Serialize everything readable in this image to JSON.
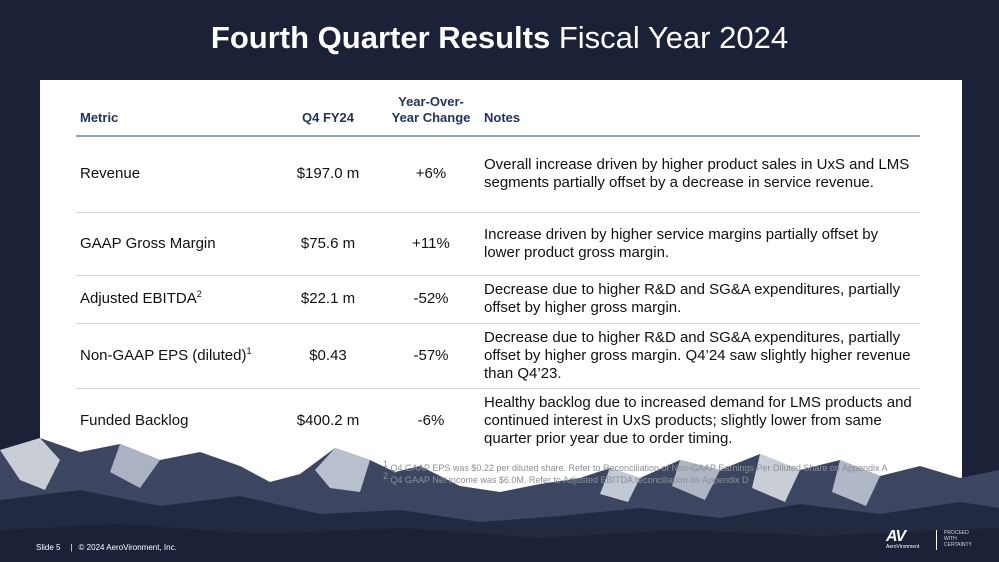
{
  "title": {
    "bold": "Fourth Quarter Results",
    "light": "Fiscal Year 2024"
  },
  "table": {
    "headers": {
      "metric": "Metric",
      "q4": "Q4 FY24",
      "yoy_line1": "Year-Over-",
      "yoy_line2": "Year Change",
      "notes": "Notes"
    },
    "rows": [
      {
        "metric": "Revenue",
        "sup": "",
        "q4": "$197.0 m",
        "yoy": "+6%",
        "notes": "Overall increase driven by higher product sales in UxS and LMS segments partially offset by a decrease in service revenue."
      },
      {
        "metric": "GAAP Gross Margin",
        "sup": "",
        "q4": "$75.6 m",
        "yoy": "+11%",
        "notes": "Increase driven by higher service margins partially offset by lower product gross margin."
      },
      {
        "metric": "Adjusted EBITDA",
        "sup": "2",
        "q4": "$22.1 m",
        "yoy": "-52%",
        "notes": "Decrease due to higher R&D and SG&A expenditures, partially offset by higher gross margin."
      },
      {
        "metric": "Non-GAAP EPS (diluted)",
        "sup": "1",
        "q4": "$0.43",
        "yoy": "-57%",
        "notes": "Decrease due to higher R&D and SG&A expenditures, partially offset by higher gross margin. Q4’24 saw slightly higher revenue than Q4’23."
      },
      {
        "metric": "Funded Backlog",
        "sup": "",
        "q4": "$400.2 m",
        "yoy": "-6%",
        "notes": "Healthy backlog due to increased demand for LMS products and continued interest in UxS products; slightly lower from same quarter prior year due to order timing."
      }
    ]
  },
  "footnotes": [
    {
      "num": "1",
      "text": "Q4 GAAP EPS was $0.22 per diluted share. Refer to Reconciliation of Non-GAAP Earnings Per Diluted Share on Appendix A"
    },
    {
      "num": "2",
      "text": "Q4 GAAP Net income was $6.0M. Refer to Adjusted EBITDA reconciliation on Appendix D"
    }
  ],
  "footer": {
    "slide": "Slide 5",
    "sep": "|",
    "copyright": "© 2024 AeroVironment, Inc."
  },
  "logo": {
    "mark": "AV",
    "name": "AeroVironment",
    "tag1": "PROCEED",
    "tag2": "WITH",
    "tag3": "CERTAINTY"
  },
  "colors": {
    "background": "#1b2238",
    "header_text": "#1f3561",
    "header_rule": "#8aa2c8"
  }
}
